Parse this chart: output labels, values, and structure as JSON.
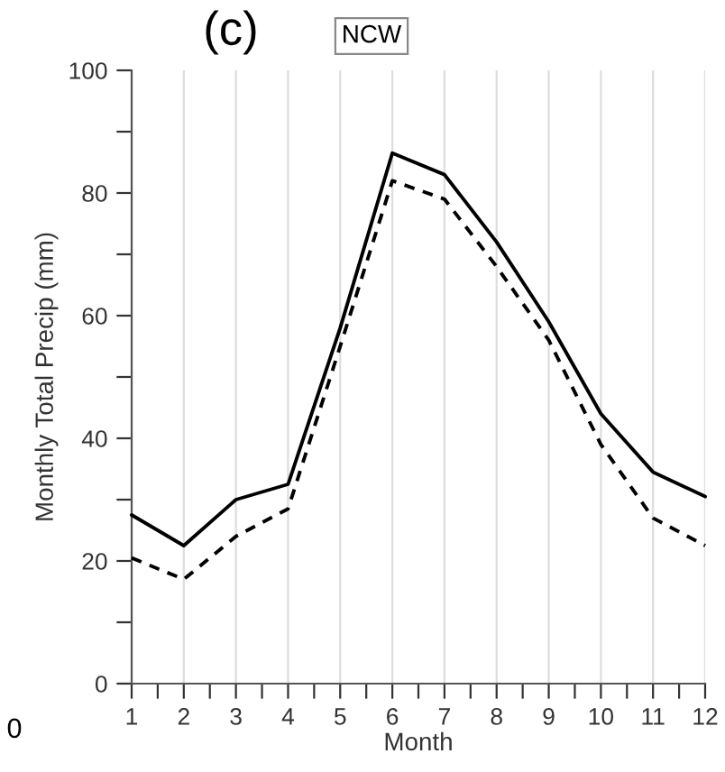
{
  "chart_data": {
    "type": "line",
    "title": "(c)",
    "subtitle": "NCW",
    "xlabel": "Month",
    "ylabel": "Monthly Total Precip (mm)",
    "annotations": [
      "0"
    ],
    "x": [
      1,
      2,
      3,
      4,
      5,
      6,
      7,
      8,
      9,
      10,
      11,
      12
    ],
    "series": [
      {
        "color": "#000000",
        "line_style": "solid",
        "values": [
          27.5,
          22.5,
          30,
          32.5,
          58,
          86.5,
          83,
          72,
          59,
          44,
          34.5,
          30.5
        ]
      },
      {
        "color": "#000000",
        "line_style": "dashed",
        "values": [
          20.5,
          17,
          24,
          28.5,
          55,
          82,
          79,
          68,
          56,
          39,
          27,
          22.5
        ]
      }
    ],
    "xlim": [
      1,
      12
    ],
    "xticks": [
      1,
      {
        "value": 1.5,
        "label": null
      },
      2,
      {
        "value": 2.5,
        "label": null
      },
      3,
      {
        "value": 3.5,
        "label": null
      },
      4,
      {
        "value": 4.5,
        "label": null
      },
      5,
      {
        "value": 5.5,
        "label": null
      },
      6,
      {
        "value": 6.5,
        "label": null
      },
      7,
      {
        "value": 7.5,
        "label": null
      },
      8,
      {
        "value": 8.5,
        "label": null
      },
      9,
      {
        "value": 9.5,
        "label": null
      },
      10,
      {
        "value": 10.5,
        "label": null
      },
      11,
      {
        "value": 11.5,
        "label": null
      },
      12
    ],
    "ylim": [
      0,
      100
    ],
    "yticks": [
      0,
      {
        "value": 10,
        "label": null
      },
      20,
      {
        "value": 30,
        "label": null
      },
      40,
      {
        "value": 50,
        "label": null
      },
      60,
      {
        "value": 70,
        "label": null
      },
      80,
      {
        "value": 90,
        "label": null
      },
      100
    ],
    "grid": "x",
    "marker": "none"
  }
}
